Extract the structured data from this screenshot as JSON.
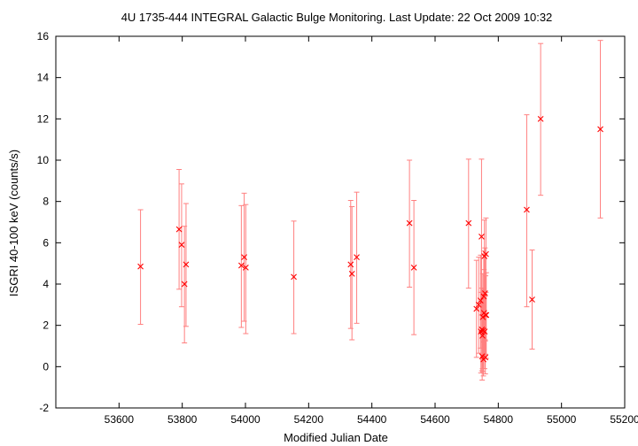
{
  "chart_data": {
    "type": "scatter",
    "title": "4U 1735-444   INTEGRAL Galactic Bulge Monitoring.  Last Update: 22 Oct 2009 10:32",
    "xlabel": "Modified Julian Date",
    "ylabel": "ISGRI 40-100 keV (counts/s)",
    "xlim": [
      53400,
      55200
    ],
    "ylim": [
      -2,
      16
    ],
    "xticks": [
      53600,
      53800,
      54000,
      54200,
      54400,
      54600,
      54800,
      55000,
      55200
    ],
    "yticks": [
      -2,
      0,
      2,
      4,
      6,
      8,
      10,
      12,
      14,
      16
    ],
    "grid": false,
    "marker_color": "#ff0000",
    "errorbar_color": "#ff8080",
    "series": [
      {
        "points": [
          {
            "x": 53668,
            "y": 4.85,
            "lo": 2.05,
            "hi": 7.6
          },
          {
            "x": 53790,
            "y": 6.65,
            "lo": 3.75,
            "hi": 9.55
          },
          {
            "x": 53798,
            "y": 5.9,
            "lo": 2.9,
            "hi": 8.85
          },
          {
            "x": 53807,
            "y": 4.0,
            "lo": 1.15,
            "hi": 6.8
          },
          {
            "x": 53812,
            "y": 4.95,
            "lo": 1.95,
            "hi": 7.9
          },
          {
            "x": 53987,
            "y": 4.9,
            "lo": 1.9,
            "hi": 7.8
          },
          {
            "x": 53996,
            "y": 5.3,
            "lo": 2.2,
            "hi": 8.4
          },
          {
            "x": 54001,
            "y": 4.8,
            "lo": 1.6,
            "hi": 7.85
          },
          {
            "x": 54153,
            "y": 4.35,
            "lo": 1.6,
            "hi": 7.05
          },
          {
            "x": 54333,
            "y": 4.95,
            "lo": 1.85,
            "hi": 8.05
          },
          {
            "x": 54337,
            "y": 4.5,
            "lo": 1.3,
            "hi": 7.75
          },
          {
            "x": 54352,
            "y": 5.3,
            "lo": 2.1,
            "hi": 8.45
          },
          {
            "x": 54519,
            "y": 6.95,
            "lo": 3.85,
            "hi": 10.0
          },
          {
            "x": 54533,
            "y": 4.8,
            "lo": 1.55,
            "hi": 8.05
          },
          {
            "x": 54706,
            "y": 6.95,
            "lo": 3.8,
            "hi": 10.05
          },
          {
            "x": 54731,
            "y": 2.8,
            "lo": 0.45,
            "hi": 5.15
          },
          {
            "x": 54738,
            "y": 3.0,
            "lo": 0.65,
            "hi": 5.3
          },
          {
            "x": 54744,
            "y": 3.2,
            "lo": 0.9,
            "hi": 5.4
          },
          {
            "x": 54745,
            "y": 1.7,
            "lo": -0.3,
            "hi": 3.6
          },
          {
            "x": 54747,
            "y": 6.3,
            "lo": 2.5,
            "hi": 10.05
          },
          {
            "x": 54748,
            "y": 1.8,
            "lo": -0.2,
            "hi": 3.8
          },
          {
            "x": 54749,
            "y": 0.5,
            "lo": -0.65,
            "hi": 1.65
          },
          {
            "x": 54750,
            "y": 1.5,
            "lo": -0.1,
            "hi": 3.1
          },
          {
            "x": 54751,
            "y": 2.4,
            "lo": 0.35,
            "hi": 4.5
          },
          {
            "x": 54752,
            "y": 1.75,
            "lo": -0.25,
            "hi": 3.8
          },
          {
            "x": 54753,
            "y": 0.35,
            "lo": -0.45,
            "hi": 1.2
          },
          {
            "x": 54754,
            "y": 3.4,
            "lo": 1.2,
            "hi": 5.6
          },
          {
            "x": 54755,
            "y": 2.6,
            "lo": 0.5,
            "hi": 4.7
          },
          {
            "x": 54756,
            "y": 5.35,
            "lo": 3.6,
            "hi": 7.1
          },
          {
            "x": 54757,
            "y": 1.7,
            "lo": -0.1,
            "hi": 3.5
          },
          {
            "x": 54758,
            "y": 3.55,
            "lo": 1.3,
            "hi": 5.75
          },
          {
            "x": 54759,
            "y": 0.45,
            "lo": -0.35,
            "hi": 1.25
          },
          {
            "x": 54760,
            "y": 2.5,
            "lo": 0.6,
            "hi": 4.4
          },
          {
            "x": 54761,
            "y": 5.45,
            "lo": 3.6,
            "hi": 7.2
          },
          {
            "x": 54762,
            "y": 2.5,
            "lo": 0.4,
            "hi": 4.55
          },
          {
            "x": 54890,
            "y": 7.6,
            "lo": 2.9,
            "hi": 12.2
          },
          {
            "x": 54907,
            "y": 3.25,
            "lo": 0.85,
            "hi": 5.65
          },
          {
            "x": 54934,
            "y": 12.0,
            "lo": 8.3,
            "hi": 15.65
          },
          {
            "x": 55123,
            "y": 11.5,
            "lo": 7.2,
            "hi": 15.8
          }
        ]
      }
    ]
  }
}
